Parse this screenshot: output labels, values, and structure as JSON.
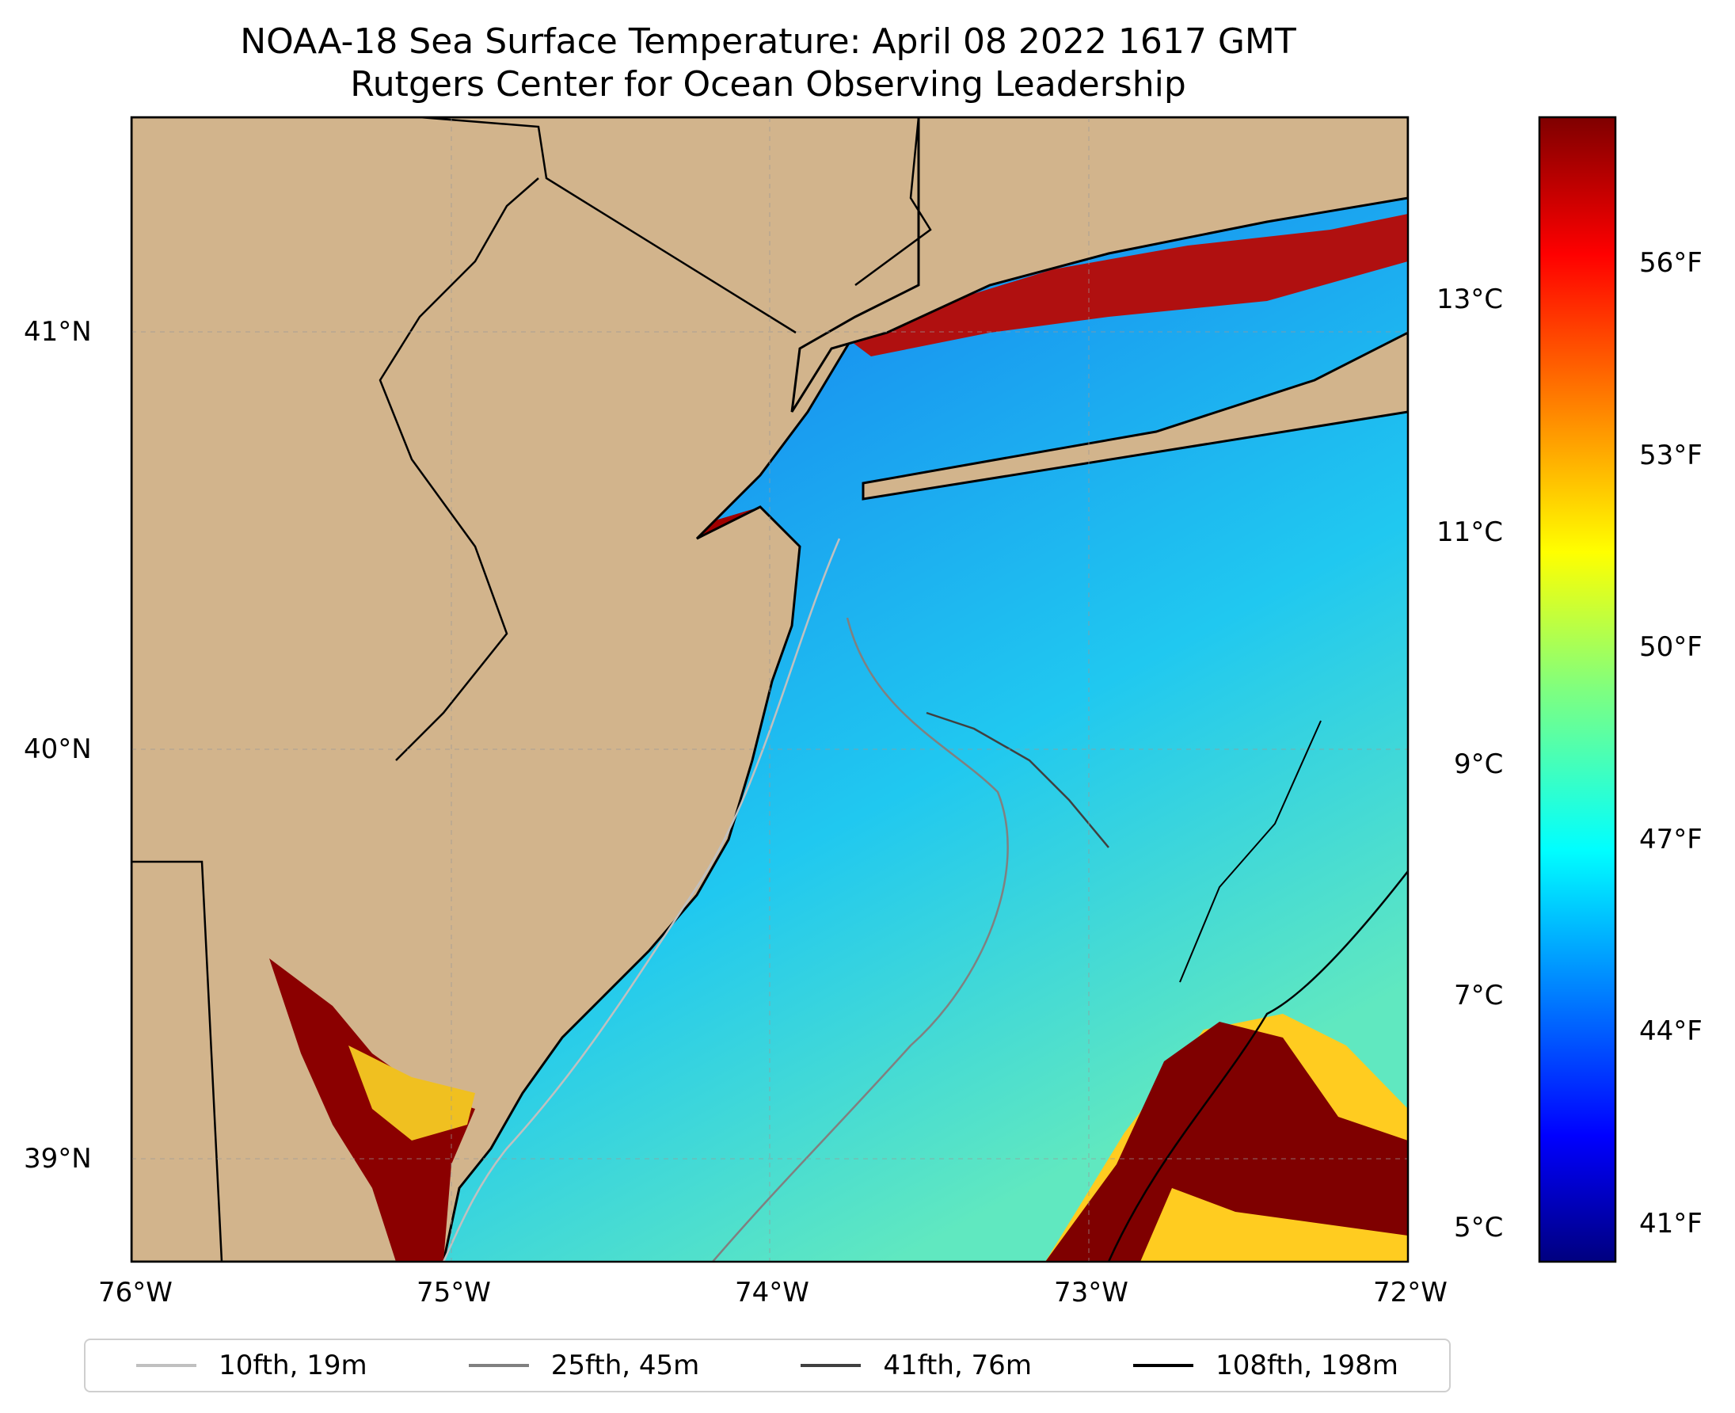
{
  "title": {
    "line1": "NOAA-18 Sea Surface Temperature: April 08 2022 1617 GMT",
    "line2": "Rutgers Center for Ocean Observing Leadership"
  },
  "map": {
    "x_ticks": [
      "76°W",
      "75°W",
      "74°W",
      "73°W",
      "72°W"
    ],
    "y_ticks": [
      "41°N",
      "40°N",
      "39°N"
    ],
    "land_color": "#d2b48c",
    "coast_color": "#000000"
  },
  "colorbar": {
    "celsius_ticks": [
      "13°C",
      "11°C",
      "9°C",
      "7°C",
      "5°C"
    ],
    "fahrenheit_ticks": [
      "56°F",
      "53°F",
      "50°F",
      "47°F",
      "44°F",
      "41°F"
    ],
    "colormap": "jet"
  },
  "legend": {
    "items": [
      {
        "label": "10fth, 19m",
        "color": "#c0c0c0"
      },
      {
        "label": "25fth, 45m",
        "color": "#808080"
      },
      {
        "label": "41fth, 76m",
        "color": "#404040"
      },
      {
        "label": "108fth, 198m",
        "color": "#000000"
      }
    ]
  }
}
